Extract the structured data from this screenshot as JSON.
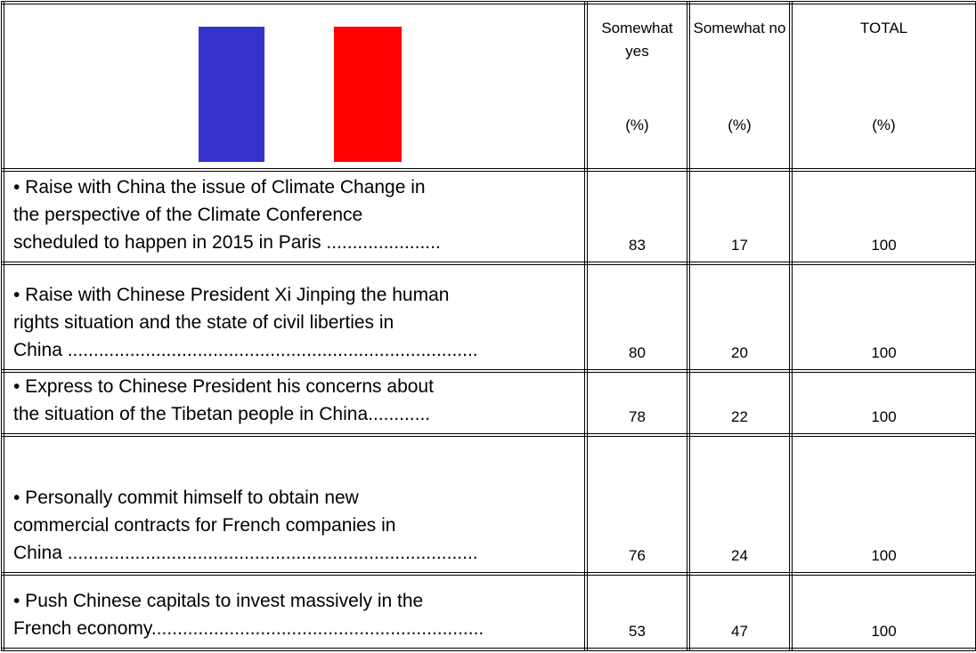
{
  "table": {
    "columns": [
      {
        "label": "Somewhat yes",
        "unit": "(%)"
      },
      {
        "label": "Somewhat no",
        "unit": "(%)"
      },
      {
        "label": "TOTAL",
        "unit": "(%)"
      }
    ],
    "rows": [
      {
        "lines": [
          "• Raise with China the issue of Climate Change in",
          "the perspective of the Climate Conference",
          "scheduled to happen in 2015 in Paris  ......................"
        ],
        "values": [
          "83",
          "17",
          "100"
        ]
      },
      {
        "lines": [
          "• Raise with Chinese President Xi Jinping the human",
          "rights situation and the state of civil liberties in",
          "China ..............................................................................."
        ],
        "values": [
          "80",
          "20",
          "100"
        ]
      },
      {
        "lines": [
          "• Express to Chinese President his concerns about",
          "the situation of the Tibetan people in China............"
        ],
        "values": [
          "78",
          "22",
          "100"
        ]
      },
      {
        "lines": [
          "• Personally commit himself to obtain new",
          "commercial contracts for French companies in",
          "China",
          "China ..............................................................................."
        ],
        "values": [
          "76",
          "24",
          "100"
        ]
      },
      {
        "lines": [
          "• Push Chinese capitals to invest massively in the",
          "French economy................................................................"
        ],
        "values": [
          "53",
          "47",
          "100"
        ]
      }
    ]
  }
}
